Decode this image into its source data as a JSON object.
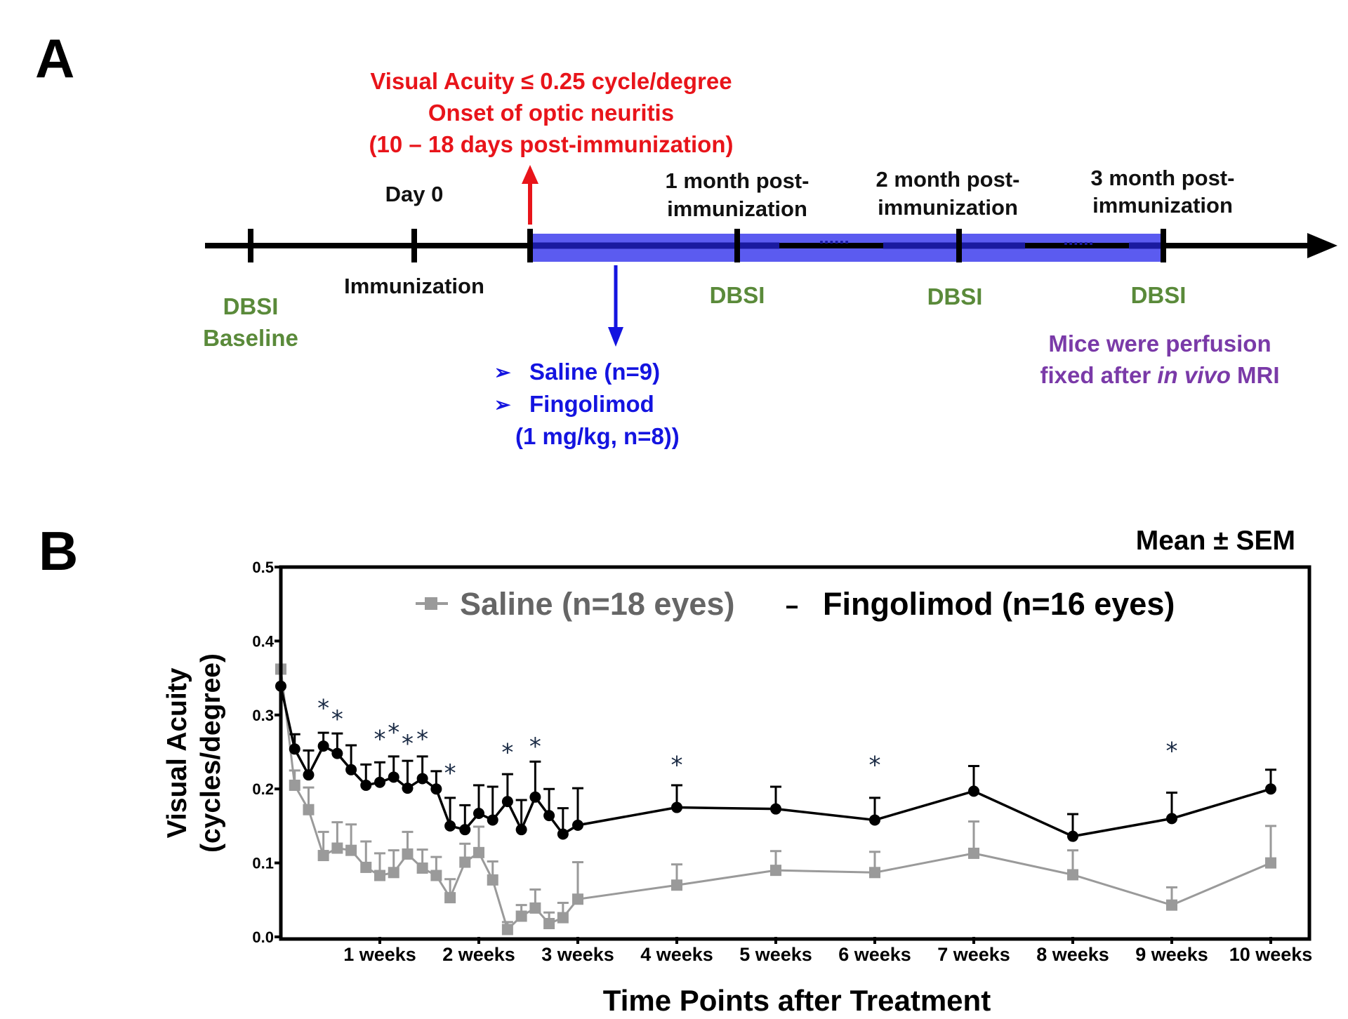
{
  "panel_a": {
    "letter": "A",
    "onset": {
      "line1": "Visual Acuity ≤ 0.25 cycle/degree",
      "line2": "Onset of optic neuritis",
      "line3": "(10 – 18 days post-immunization)",
      "color": "#e8141a"
    },
    "day0": "Day 0",
    "immunization": "Immunization",
    "month1": {
      "line1": "1 month post-",
      "line2": "immunization"
    },
    "month2": {
      "line1": "2 month post-",
      "line2": "immunization"
    },
    "month3": {
      "line1": "3 month post-",
      "line2": "immunization"
    },
    "dbsi_baseline": {
      "line1": "DBSI",
      "line2": "Baseline"
    },
    "dbsi": "DBSI",
    "dots": "......",
    "treatments": {
      "bullet": "➢",
      "saline": "Saline (n=9)",
      "fingolimod": "Fingolimod",
      "dose": "(1 mg/kg, n=8))",
      "color": "#1414e0"
    },
    "perfusion": {
      "line1": "Mice were perfusion",
      "line2_pre": "fixed after ",
      "line2_italic": "in vivo",
      "line2_post": " MRI",
      "color": "#7a3aa8"
    },
    "colors": {
      "dbsi": "#5a8a3a",
      "band": "#5b5bf0",
      "band_dash": "#1a1aa0"
    }
  },
  "panel_b": {
    "letter": "B",
    "stat_note": "Mean ± SEM"
  },
  "chart_data": {
    "type": "line",
    "xlabel": "Time Points after Treatment",
    "ylabel_line1": "Visual Acuity",
    "ylabel_line2": "(cycles/degree)",
    "xlim": [
      0,
      10.15
    ],
    "ylim": [
      0,
      0.5
    ],
    "y_ticks": [
      "0.0",
      "0.1",
      "0.2",
      "0.3",
      "0.4",
      "0.5"
    ],
    "x_ticks": [
      {
        "x": 1,
        "label": "1 weeks"
      },
      {
        "x": 2,
        "label": "2 weeks"
      },
      {
        "x": 3,
        "label": "3 weeks"
      },
      {
        "x": 4,
        "label": "4 weeks"
      },
      {
        "x": 5,
        "label": "5 weeks"
      },
      {
        "x": 6,
        "label": "6 weeks"
      },
      {
        "x": 7,
        "label": "7 weeks"
      },
      {
        "x": 8,
        "label": "8 weeks"
      },
      {
        "x": 9,
        "label": "9 weeks"
      },
      {
        "x": 10,
        "label": "10 weeks"
      }
    ],
    "legend_position": "top",
    "series": [
      {
        "name": "Saline (n=18 eyes)",
        "color": "#9a9a9a",
        "marker": "square",
        "points": [
          [
            0.0,
            0.362,
            0.0
          ],
          [
            0.14,
            0.205,
            0.02
          ],
          [
            0.28,
            0.172,
            0.03
          ],
          [
            0.43,
            0.11,
            0.032
          ],
          [
            0.57,
            0.12,
            0.035
          ],
          [
            0.71,
            0.117,
            0.035
          ],
          [
            0.86,
            0.094,
            0.035
          ],
          [
            1.0,
            0.083,
            0.03
          ],
          [
            1.14,
            0.087,
            0.03
          ],
          [
            1.28,
            0.112,
            0.03
          ],
          [
            1.43,
            0.093,
            0.025
          ],
          [
            1.57,
            0.083,
            0.025
          ],
          [
            1.71,
            0.053,
            0.025
          ],
          [
            1.86,
            0.101,
            0.025
          ],
          [
            2.0,
            0.114,
            0.035
          ],
          [
            2.14,
            0.077,
            0.025
          ],
          [
            2.29,
            0.01,
            0.01
          ],
          [
            2.43,
            0.028,
            0.015
          ],
          [
            2.57,
            0.039,
            0.025
          ],
          [
            2.71,
            0.018,
            0.015
          ],
          [
            2.85,
            0.026,
            0.02
          ],
          [
            3.0,
            0.051,
            0.05
          ],
          [
            4.0,
            0.07,
            0.028
          ],
          [
            5.0,
            0.09,
            0.026
          ],
          [
            6.0,
            0.087,
            0.028
          ],
          [
            7.0,
            0.113,
            0.043
          ],
          [
            8.0,
            0.084,
            0.033
          ],
          [
            9.0,
            0.043,
            0.024
          ],
          [
            10.0,
            0.1,
            0.05
          ]
        ]
      },
      {
        "name": "Fingolimod (n=16 eyes)",
        "color": "#000000",
        "marker": "circle",
        "points": [
          [
            0.0,
            0.339,
            0.0
          ],
          [
            0.14,
            0.254,
            0.02
          ],
          [
            0.28,
            0.219,
            0.033
          ],
          [
            0.43,
            0.258,
            0.018
          ],
          [
            0.57,
            0.248,
            0.027
          ],
          [
            0.71,
            0.226,
            0.033
          ],
          [
            0.86,
            0.205,
            0.028
          ],
          [
            1.0,
            0.209,
            0.027
          ],
          [
            1.14,
            0.216,
            0.028
          ],
          [
            1.28,
            0.201,
            0.037
          ],
          [
            1.43,
            0.214,
            0.03
          ],
          [
            1.57,
            0.2,
            0.024
          ],
          [
            1.71,
            0.15,
            0.038
          ],
          [
            1.86,
            0.145,
            0.033
          ],
          [
            2.0,
            0.167,
            0.038
          ],
          [
            2.14,
            0.158,
            0.045
          ],
          [
            2.29,
            0.183,
            0.037
          ],
          [
            2.43,
            0.145,
            0.04
          ],
          [
            2.57,
            0.189,
            0.048
          ],
          [
            2.71,
            0.164,
            0.036
          ],
          [
            2.85,
            0.139,
            0.035
          ],
          [
            3.0,
            0.151,
            0.05
          ],
          [
            4.0,
            0.175,
            0.03
          ],
          [
            5.0,
            0.173,
            0.03
          ],
          [
            6.0,
            0.158,
            0.03
          ],
          [
            7.0,
            0.197,
            0.034
          ],
          [
            8.0,
            0.136,
            0.03
          ],
          [
            9.0,
            0.16,
            0.035
          ],
          [
            10.0,
            0.2,
            0.026
          ]
        ]
      }
    ],
    "significance": [
      {
        "label": "*",
        "x": 0.43,
        "y": 0.31
      },
      {
        "label": "*",
        "x": 0.57,
        "y": 0.295
      },
      {
        "label": "*",
        "x": 1.0,
        "y": 0.268
      },
      {
        "label": "*",
        "x": 1.14,
        "y": 0.277
      },
      {
        "label": "*",
        "x": 1.28,
        "y": 0.262
      },
      {
        "label": "*",
        "x": 1.43,
        "y": 0.268
      },
      {
        "label": "*",
        "x": 1.71,
        "y": 0.222
      },
      {
        "label": "*",
        "x": 2.29,
        "y": 0.25
      },
      {
        "label": "*",
        "x": 2.57,
        "y": 0.258
      },
      {
        "label": "*",
        "x": 4.0,
        "y": 0.233
      },
      {
        "label": "*",
        "x": 6.0,
        "y": 0.233
      },
      {
        "label": "*",
        "x": 9.0,
        "y": 0.252
      }
    ]
  }
}
